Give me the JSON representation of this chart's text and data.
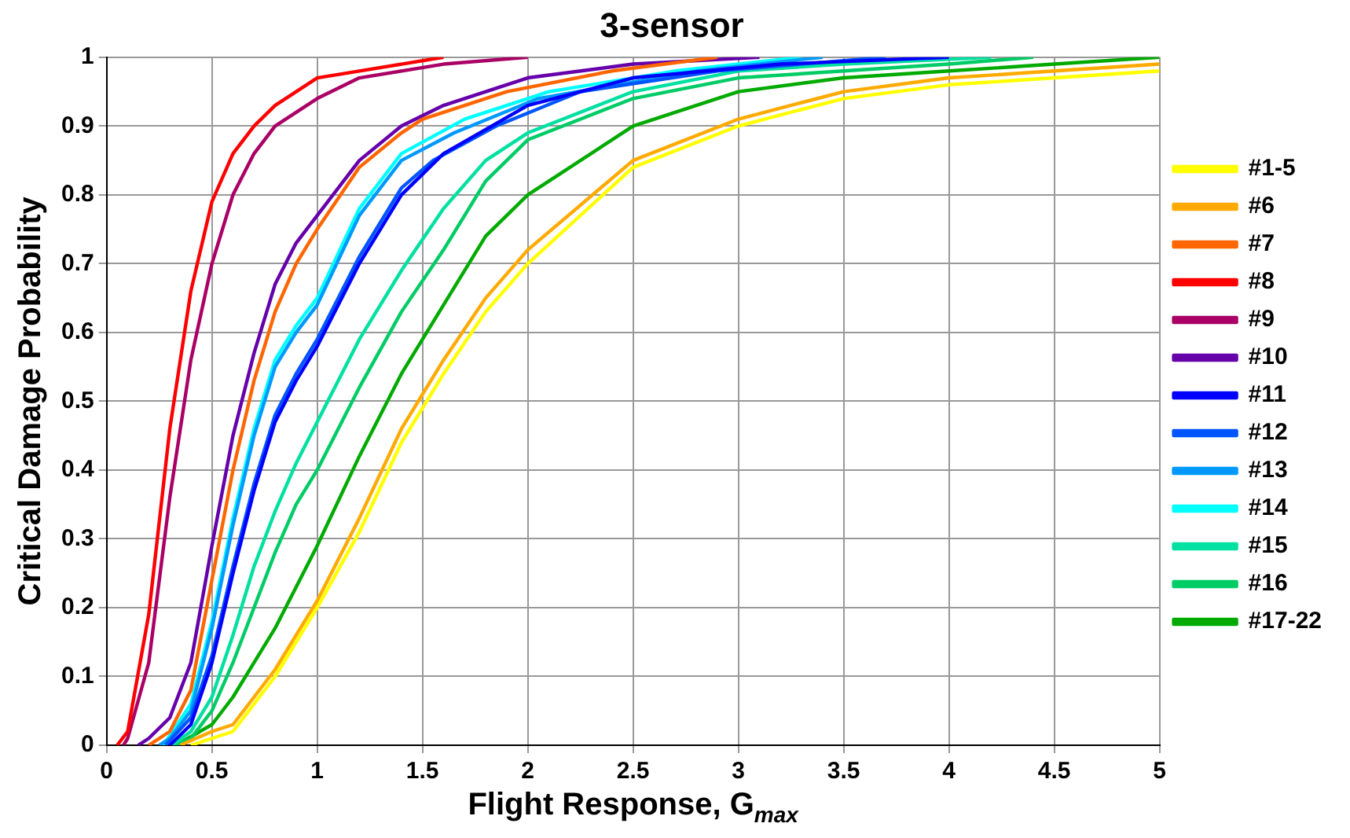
{
  "chart_data": {
    "type": "line",
    "title": "3-sensor",
    "xlabel": "Flight Response, G$_{max}$",
    "ylabel": "Critical Damage Probability",
    "xlim": [
      0,
      5
    ],
    "xticks": [
      0,
      0.5,
      1,
      1.5,
      2,
      2.5,
      3,
      3.5,
      4,
      4.5,
      5
    ],
    "ylim": [
      0,
      1
    ],
    "yticks": [
      0,
      0.1,
      0.2,
      0.3,
      0.4,
      0.5,
      0.6,
      0.7,
      0.8,
      0.9,
      1
    ],
    "grid": true,
    "legend": "right",
    "marker": "none",
    "line_style": "solid",
    "series": [
      {
        "name": "#1-5",
        "color": "#ffff00",
        "x": [
          0.4,
          0.5,
          0.6,
          0.7,
          0.8,
          0.9,
          1,
          1.2,
          1.4,
          1.6,
          1.8,
          2,
          2.5,
          3,
          3.5,
          4,
          4.5,
          5
        ],
        "values": [
          0,
          0.01,
          0.02,
          0.06,
          0.1,
          0.15,
          0.2,
          0.31,
          0.44,
          0.54,
          0.63,
          0.7,
          0.84,
          0.9,
          0.94,
          0.96,
          0.97,
          0.98
        ]
      },
      {
        "name": "#6",
        "color": "#ffaa00",
        "x": [
          0.35,
          0.5,
          0.6,
          0.7,
          0.8,
          0.9,
          1,
          1.2,
          1.4,
          1.6,
          1.8,
          2,
          2.5,
          3,
          3.5,
          4,
          4.5,
          5
        ],
        "values": [
          0,
          0.02,
          0.03,
          0.07,
          0.11,
          0.16,
          0.21,
          0.33,
          0.46,
          0.56,
          0.65,
          0.72,
          0.85,
          0.91,
          0.95,
          0.97,
          0.98,
          0.99
        ]
      },
      {
        "name": "#7",
        "color": "#ff6600",
        "x": [
          0.2,
          0.3,
          0.4,
          0.5,
          0.6,
          0.7,
          0.8,
          0.9,
          1,
          1.2,
          1.4,
          1.5,
          1.9,
          2.4,
          2.9
        ],
        "values": [
          0,
          0.02,
          0.08,
          0.24,
          0.4,
          0.53,
          0.63,
          0.7,
          0.75,
          0.84,
          0.89,
          0.91,
          0.95,
          0.98,
          1
        ]
      },
      {
        "name": "#8",
        "color": "#ff0000",
        "x": [
          0.05,
          0.1,
          0.2,
          0.3,
          0.4,
          0.5,
          0.6,
          0.7,
          0.8,
          0.9,
          1,
          1.2,
          1.4,
          1.6
        ],
        "values": [
          0,
          0.02,
          0.19,
          0.46,
          0.66,
          0.79,
          0.86,
          0.9,
          0.93,
          0.95,
          0.97,
          0.98,
          0.99,
          1
        ]
      },
      {
        "name": "#9",
        "color": "#aa0066",
        "x": [
          0.08,
          0.1,
          0.2,
          0.3,
          0.4,
          0.5,
          0.6,
          0.7,
          0.8,
          0.9,
          1,
          1.2,
          1.4,
          1.6,
          2
        ],
        "values": [
          0,
          0.01,
          0.12,
          0.36,
          0.56,
          0.7,
          0.8,
          0.86,
          0.9,
          0.92,
          0.94,
          0.97,
          0.98,
          0.99,
          1
        ]
      },
      {
        "name": "#10",
        "color": "#6600aa",
        "x": [
          0.15,
          0.2,
          0.3,
          0.4,
          0.5,
          0.6,
          0.7,
          0.8,
          0.9,
          1,
          1.2,
          1.4,
          1.6,
          2,
          2.5,
          3.1
        ],
        "values": [
          0,
          0.01,
          0.04,
          0.12,
          0.29,
          0.45,
          0.57,
          0.67,
          0.73,
          0.77,
          0.85,
          0.9,
          0.93,
          0.97,
          0.99,
          1
        ]
      },
      {
        "name": "#11",
        "color": "#0000ff",
        "x": [
          0.3,
          0.4,
          0.5,
          0.6,
          0.7,
          0.8,
          0.9,
          1,
          1.2,
          1.4,
          1.6,
          2,
          2.5,
          3.2,
          4
        ],
        "values": [
          0,
          0.03,
          0.12,
          0.25,
          0.37,
          0.47,
          0.53,
          0.58,
          0.7,
          0.8,
          0.86,
          0.93,
          0.97,
          0.99,
          1
        ]
      },
      {
        "name": "#12",
        "color": "#0055ff",
        "x": [
          0.28,
          0.4,
          0.5,
          0.6,
          0.7,
          0.8,
          0.9,
          1,
          1.2,
          1.4,
          1.55,
          1.85,
          2.25,
          2.9,
          3.7
        ],
        "values": [
          0,
          0.04,
          0.13,
          0.26,
          0.38,
          0.48,
          0.54,
          0.59,
          0.71,
          0.81,
          0.85,
          0.9,
          0.95,
          0.98,
          1
        ]
      },
      {
        "name": "#13",
        "color": "#0099ff",
        "x": [
          0.25,
          0.3,
          0.4,
          0.5,
          0.6,
          0.7,
          0.8,
          0.9,
          1,
          1.2,
          1.4,
          1.65,
          2.05,
          2.8,
          3.4
        ],
        "values": [
          0,
          0.01,
          0.05,
          0.17,
          0.32,
          0.45,
          0.55,
          0.6,
          0.64,
          0.77,
          0.85,
          0.89,
          0.94,
          0.98,
          1
        ]
      },
      {
        "name": "#14",
        "color": "#00ffff",
        "x": [
          0.27,
          0.4,
          0.5,
          0.6,
          0.7,
          0.8,
          0.9,
          1,
          1.2,
          1.4,
          1.7,
          2.1,
          2.7,
          3.3
        ],
        "values": [
          0,
          0.06,
          0.18,
          0.33,
          0.46,
          0.56,
          0.61,
          0.65,
          0.78,
          0.86,
          0.91,
          0.95,
          0.98,
          1
        ]
      },
      {
        "name": "#15",
        "color": "#00e0a0",
        "x": [
          0.31,
          0.4,
          0.5,
          0.6,
          0.7,
          0.8,
          0.9,
          1,
          1.2,
          1.4,
          1.6,
          1.8,
          2,
          2.5,
          3,
          3.5,
          4.2
        ],
        "values": [
          0,
          0.02,
          0.07,
          0.16,
          0.26,
          0.34,
          0.41,
          0.47,
          0.59,
          0.69,
          0.78,
          0.85,
          0.89,
          0.95,
          0.98,
          0.99,
          1
        ]
      },
      {
        "name": "#16",
        "color": "#00cc66",
        "x": [
          0.32,
          0.4,
          0.5,
          0.6,
          0.7,
          0.8,
          0.9,
          1,
          1.2,
          1.4,
          1.6,
          1.8,
          2,
          2.5,
          3,
          3.5,
          4,
          4.4
        ],
        "values": [
          0,
          0.01,
          0.05,
          0.12,
          0.2,
          0.28,
          0.35,
          0.4,
          0.52,
          0.63,
          0.72,
          0.82,
          0.88,
          0.94,
          0.97,
          0.98,
          0.99,
          1
        ]
      },
      {
        "name": "#17-22",
        "color": "#00aa00",
        "x": [
          0.33,
          0.5,
          0.6,
          0.7,
          0.8,
          0.9,
          1,
          1.2,
          1.4,
          1.6,
          1.8,
          2,
          2.5,
          3,
          3.5,
          4,
          4.5,
          5
        ],
        "values": [
          0,
          0.03,
          0.07,
          0.12,
          0.17,
          0.23,
          0.29,
          0.42,
          0.54,
          0.64,
          0.74,
          0.8,
          0.9,
          0.95,
          0.97,
          0.98,
          0.99,
          1
        ]
      }
    ]
  }
}
